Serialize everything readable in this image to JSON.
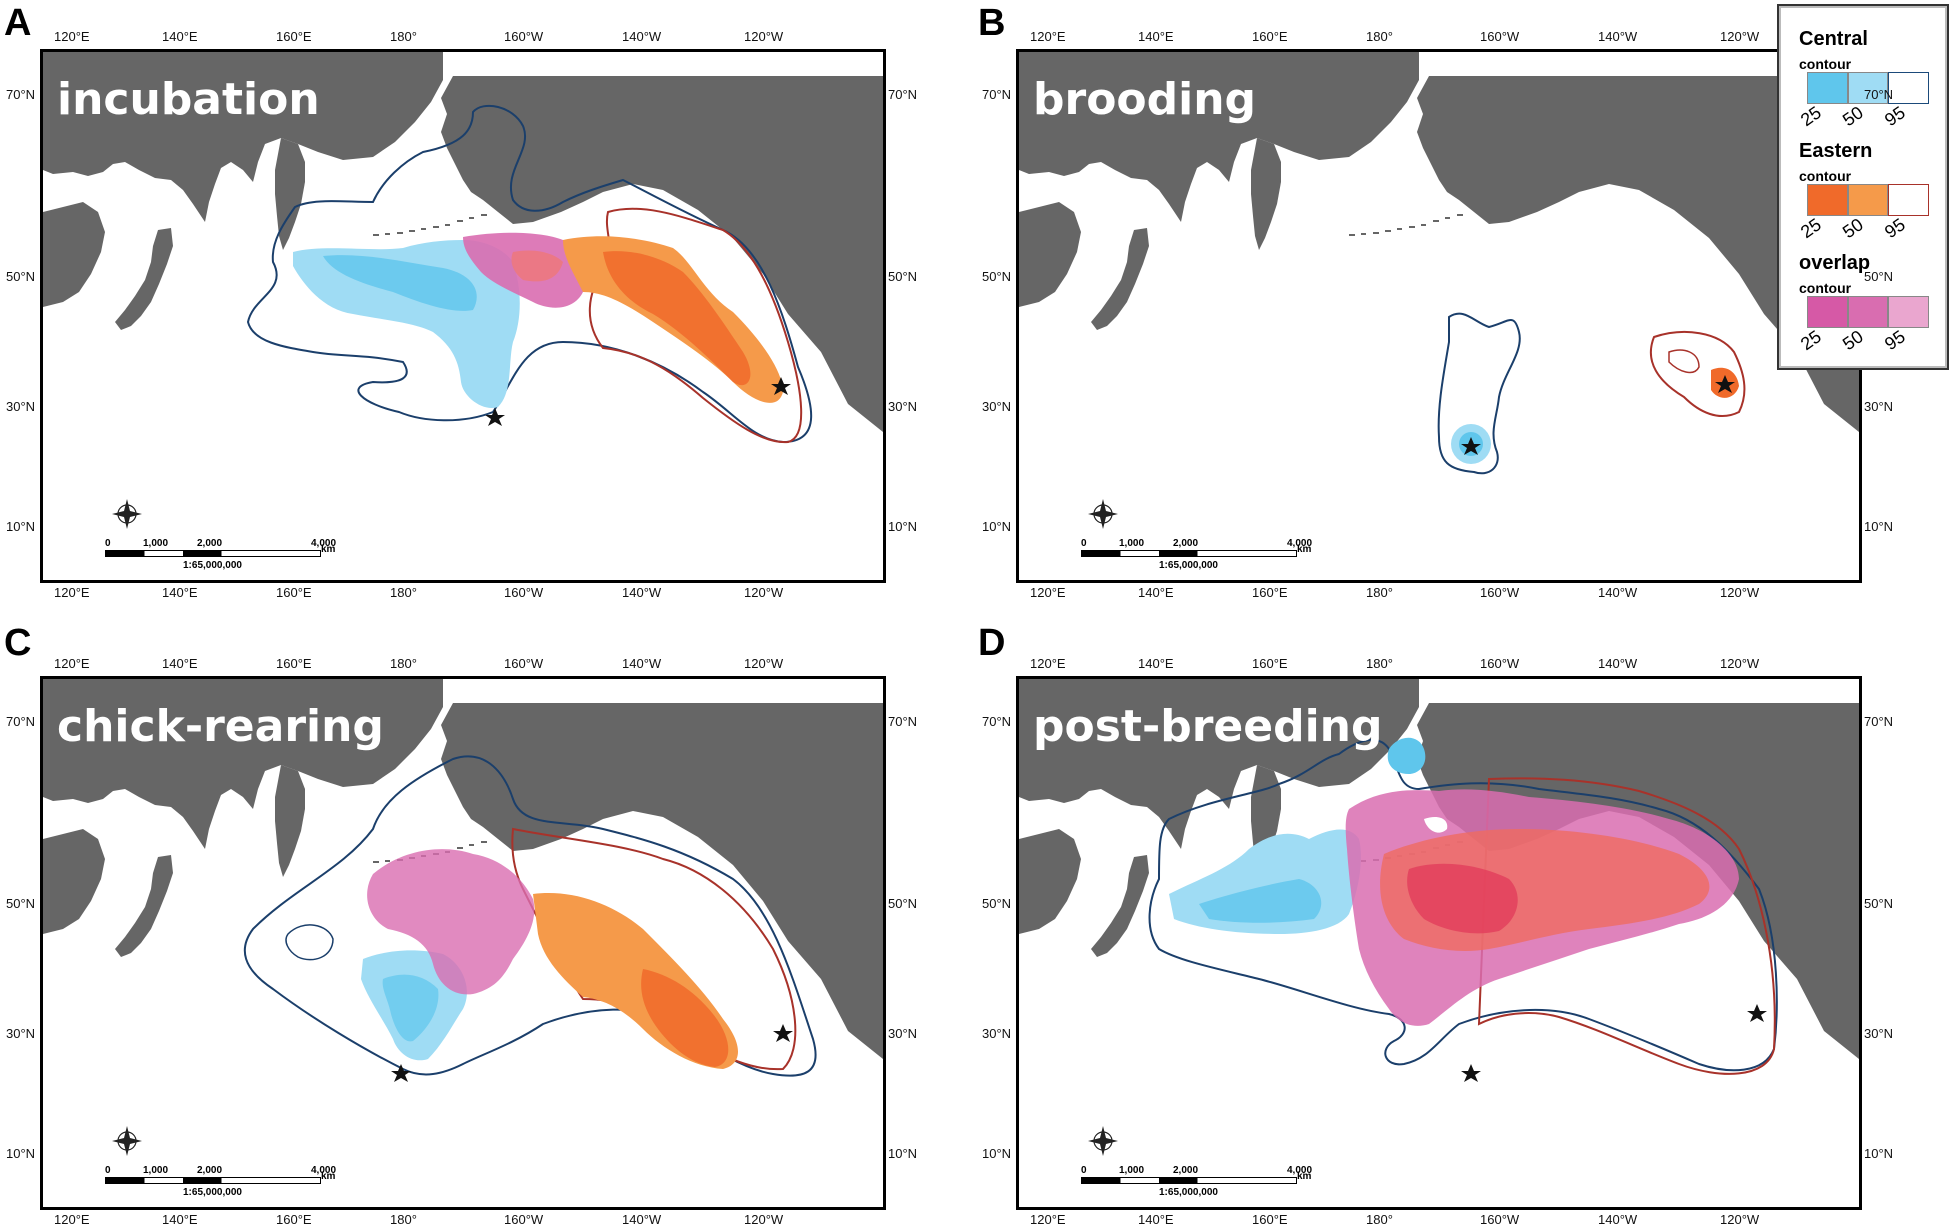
{
  "panels": [
    {
      "letter": "A",
      "stage": "incubation"
    },
    {
      "letter": "B",
      "stage": "brooding"
    },
    {
      "letter": "C",
      "stage": "chick-rearing"
    },
    {
      "letter": "D",
      "stage": "post-breeding"
    }
  ],
  "axes": {
    "lon_labels": [
      "120°E",
      "140°E",
      "160°E",
      "180°",
      "160°W",
      "140°W",
      "120°W"
    ],
    "lat_labels": [
      "70°N",
      "50°N",
      "30°N",
      "10°N"
    ]
  },
  "scale_bar": {
    "ticks": [
      "0",
      "1,000",
      "2,000",
      "4,000"
    ],
    "unit": "km",
    "ratio": "1:65,000,000"
  },
  "legend": {
    "groups": [
      {
        "title": "Central",
        "subtitle": "contour",
        "colors": [
          "#5fc6ec",
          "#9fdcf4",
          "#ffffff"
        ],
        "outline": "#1b4a7a"
      },
      {
        "title": "Eastern",
        "subtitle": "contour",
        "colors": [
          "#f06a2a",
          "#f59a4a",
          "#ffffff"
        ],
        "outline": "#a8322a"
      },
      {
        "title": "overlap",
        "subtitle": "contour",
        "colors": [
          "#d659a6",
          "#d96db0",
          "#eaa6cf"
        ],
        "outline": "#888888"
      }
    ],
    "levels": [
      "25",
      "50",
      "95"
    ]
  },
  "colors": {
    "land": "#666666",
    "central_line": "#1b3f6b",
    "eastern_line": "#a8322a"
  }
}
